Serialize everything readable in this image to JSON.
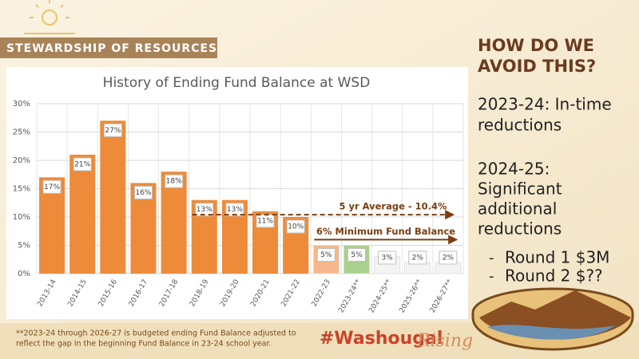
{
  "slide": {
    "banner": "STEWARDSHIP OF RESOURCES",
    "heading": [
      "HOW DO WE",
      "AVOID THIS?"
    ],
    "point1": [
      "2023-24: In-time",
      "reductions"
    ],
    "point2": [
      "2024-25:",
      "Significant",
      "additional",
      "reductions"
    ],
    "bullets": [
      "Round 1 $3M",
      "Round 2 $??"
    ],
    "footnote": [
      "**2023-24 through 2026-27 is budgeted ending Fund Balance adjusted to",
      "reflect the gap in the beginning Fund Balance in 23-24 school year."
    ],
    "hashtag": "#Washougal",
    "hashtag_script": "Rising"
  },
  "chart_data": {
    "type": "bar",
    "title": "History of Ending Fund Balance at WSD",
    "categories": [
      "2013-14",
      "2014-15",
      "2015-16",
      "2016-17",
      "2017-18",
      "2018-19",
      "2019-20",
      "2020-21",
      "2021-22",
      "2022-23",
      "2023-24**",
      "2024-25**",
      "2025-26**",
      "2026-27**"
    ],
    "values": [
      17,
      21,
      27,
      16,
      18,
      13,
      13,
      11,
      10,
      5,
      5,
      3,
      2,
      2
    ],
    "value_labels": [
      "17%",
      "21%",
      "27%",
      "16%",
      "18%",
      "13%",
      "13%",
      "11%",
      "10%",
      "5%",
      "5%",
      "3%",
      "2%",
      "2%"
    ],
    "colors": [
      "#ed8b3a",
      "#ed8b3a",
      "#ed8b3a",
      "#ed8b3a",
      "#ed8b3a",
      "#ed8b3a",
      "#ed8b3a",
      "#ed8b3a",
      "#ed8b3a",
      "#f6b88a",
      "#a9d18e",
      "#f4f4f4",
      "#f4f4f4",
      "#f4f4f4"
    ],
    "ylim": [
      0,
      30
    ],
    "yticks": [
      {
        "value": 0,
        "label": "0%"
      },
      {
        "value": 5,
        "label": "5%"
      },
      {
        "value": 10,
        "label": "10%"
      },
      {
        "value": 15,
        "label": "15%"
      },
      {
        "value": 20,
        "label": "20%"
      },
      {
        "value": 25,
        "label": "25%"
      },
      {
        "value": 30,
        "label": "30%"
      }
    ],
    "grid": true,
    "reference_lines": [
      {
        "label": "5 yr Average - 10.4%",
        "value": 10.4,
        "style": "dashed"
      },
      {
        "label": "6% Minimum Fund Balance",
        "value": 6,
        "style": "solid"
      }
    ]
  }
}
